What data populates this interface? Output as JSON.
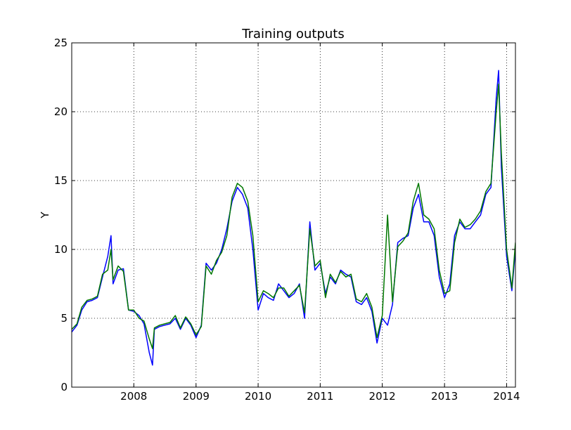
{
  "chart_data": {
    "type": "line",
    "title": "Training outputs",
    "xlabel": "",
    "ylabel": "Y",
    "xlim": [
      "2007-01-01",
      "2014-02-22"
    ],
    "ylim": [
      0,
      25
    ],
    "x_ticks": [
      "2008",
      "2009",
      "2010",
      "2011",
      "2012",
      "2013",
      "2014"
    ],
    "y_ticks": [
      "0",
      "5",
      "10",
      "15",
      "20",
      "25"
    ],
    "grid": true,
    "legend": "none",
    "series": [
      {
        "color": "#0000ff",
        "x": [
          "2007-01-01",
          "2007-02-01",
          "2007-03-01",
          "2007-04-01",
          "2007-05-01",
          "2007-06-01",
          "2007-07-01",
          "2007-08-01",
          "2007-08-20",
          "2007-09-01",
          "2007-10-01",
          "2007-11-01",
          "2007-12-01",
          "2008-01-01",
          "2008-02-01",
          "2008-03-01",
          "2008-04-01",
          "2008-04-20",
          "2008-05-01",
          "2008-06-01",
          "2008-07-01",
          "2008-08-01",
          "2008-09-01",
          "2008-10-01",
          "2008-11-01",
          "2008-12-01",
          "2009-01-01",
          "2009-02-01",
          "2009-03-01",
          "2009-04-01",
          "2009-05-01",
          "2009-06-01",
          "2009-07-01",
          "2009-08-01",
          "2009-09-01",
          "2009-10-01",
          "2009-11-01",
          "2009-12-01",
          "2010-01-01",
          "2010-02-01",
          "2010-03-01",
          "2010-04-01",
          "2010-05-01",
          "2010-06-01",
          "2010-07-01",
          "2010-08-01",
          "2010-09-01",
          "2010-10-01",
          "2010-11-01",
          "2010-12-01",
          "2011-01-01",
          "2011-02-01",
          "2011-03-01",
          "2011-04-01",
          "2011-05-01",
          "2011-06-01",
          "2011-07-01",
          "2011-08-01",
          "2011-09-01",
          "2011-10-01",
          "2011-11-01",
          "2011-12-01",
          "2012-01-01",
          "2012-02-01",
          "2012-03-01",
          "2012-04-01",
          "2012-05-01",
          "2012-06-01",
          "2012-07-01",
          "2012-08-01",
          "2012-09-01",
          "2012-10-01",
          "2012-11-01",
          "2012-12-01",
          "2013-01-01",
          "2013-02-01",
          "2013-03-01",
          "2013-04-01",
          "2013-05-01",
          "2013-06-01",
          "2013-07-01",
          "2013-08-01",
          "2013-09-01",
          "2013-10-01",
          "2013-11-01",
          "2013-11-15",
          "2013-12-01",
          "2014-01-01",
          "2014-02-01",
          "2014-02-22"
        ],
        "y": [
          4.0,
          4.5,
          5.6,
          6.2,
          6.3,
          6.5,
          8.0,
          9.5,
          11.0,
          7.5,
          8.5,
          8.6,
          5.6,
          5.5,
          5.2,
          4.6,
          2.5,
          1.6,
          4.2,
          4.4,
          4.5,
          4.6,
          5.0,
          4.2,
          5.0,
          4.5,
          3.6,
          4.5,
          9.0,
          8.5,
          9.0,
          10.0,
          11.5,
          13.5,
          14.5,
          14.0,
          13.0,
          10.0,
          5.6,
          6.8,
          6.5,
          6.3,
          7.5,
          7.0,
          6.5,
          6.8,
          7.5,
          5.0,
          12.0,
          8.5,
          9.0,
          6.8,
          8.0,
          7.5,
          8.5,
          8.2,
          8.0,
          6.2,
          6.0,
          6.5,
          5.5,
          3.2,
          5.0,
          4.5,
          6.0,
          10.5,
          10.8,
          11.0,
          13.0,
          14.0,
          12.0,
          12.0,
          11.0,
          8.0,
          6.5,
          7.5,
          11.0,
          12.0,
          11.5,
          11.5,
          12.0,
          12.5,
          14.0,
          14.5,
          21.0,
          23.0,
          16.0,
          9.5,
          7.0,
          10.0
        ]
      },
      {
        "color": "#007700",
        "x": [
          "2007-01-01",
          "2007-02-01",
          "2007-03-01",
          "2007-04-01",
          "2007-05-01",
          "2007-06-01",
          "2007-07-01",
          "2007-08-01",
          "2007-08-20",
          "2007-09-01",
          "2007-10-01",
          "2007-11-01",
          "2007-12-01",
          "2008-01-01",
          "2008-02-01",
          "2008-03-01",
          "2008-04-01",
          "2008-04-20",
          "2008-05-01",
          "2008-06-01",
          "2008-07-01",
          "2008-08-01",
          "2008-09-01",
          "2008-10-01",
          "2008-11-01",
          "2008-12-01",
          "2009-01-01",
          "2009-02-01",
          "2009-03-01",
          "2009-04-01",
          "2009-05-01",
          "2009-06-01",
          "2009-07-01",
          "2009-08-01",
          "2009-09-01",
          "2009-10-01",
          "2009-11-01",
          "2009-12-01",
          "2010-01-01",
          "2010-02-01",
          "2010-03-01",
          "2010-04-01",
          "2010-05-01",
          "2010-06-01",
          "2010-07-01",
          "2010-08-01",
          "2010-09-01",
          "2010-10-01",
          "2010-11-01",
          "2010-12-01",
          "2011-01-01",
          "2011-02-01",
          "2011-03-01",
          "2011-04-01",
          "2011-05-01",
          "2011-06-01",
          "2011-07-01",
          "2011-08-01",
          "2011-09-01",
          "2011-10-01",
          "2011-11-01",
          "2011-12-01",
          "2012-01-01",
          "2012-02-01",
          "2012-03-01",
          "2012-04-01",
          "2012-05-01",
          "2012-06-01",
          "2012-07-01",
          "2012-08-01",
          "2012-09-01",
          "2012-10-01",
          "2012-11-01",
          "2012-12-01",
          "2013-01-01",
          "2013-02-01",
          "2013-03-01",
          "2013-04-01",
          "2013-05-01",
          "2013-06-01",
          "2013-07-01",
          "2013-08-01",
          "2013-09-01",
          "2013-10-01",
          "2013-11-01",
          "2013-11-15",
          "2013-12-01",
          "2014-01-01",
          "2014-02-01",
          "2014-02-22"
        ],
        "y": [
          4.2,
          4.6,
          5.8,
          6.3,
          6.4,
          6.6,
          8.2,
          8.5,
          10.0,
          7.8,
          8.8,
          8.4,
          5.6,
          5.6,
          5.0,
          4.8,
          3.5,
          2.8,
          4.3,
          4.5,
          4.6,
          4.7,
          5.2,
          4.3,
          5.1,
          4.6,
          3.8,
          4.4,
          8.8,
          8.2,
          9.2,
          9.8,
          11.0,
          13.8,
          14.8,
          14.5,
          13.5,
          11.0,
          6.2,
          7.0,
          6.8,
          6.5,
          7.2,
          7.2,
          6.6,
          7.0,
          7.4,
          5.4,
          11.5,
          8.8,
          9.2,
          6.5,
          8.2,
          7.6,
          8.4,
          8.0,
          8.2,
          6.4,
          6.2,
          6.8,
          5.8,
          3.6,
          5.2,
          12.5,
          6.2,
          10.2,
          10.6,
          11.2,
          13.5,
          14.8,
          12.5,
          12.2,
          11.5,
          8.5,
          6.8,
          7.0,
          10.5,
          12.2,
          11.6,
          11.8,
          12.2,
          12.8,
          14.2,
          14.8,
          20.0,
          22.0,
          17.0,
          10.0,
          7.2,
          10.5
        ]
      }
    ]
  }
}
